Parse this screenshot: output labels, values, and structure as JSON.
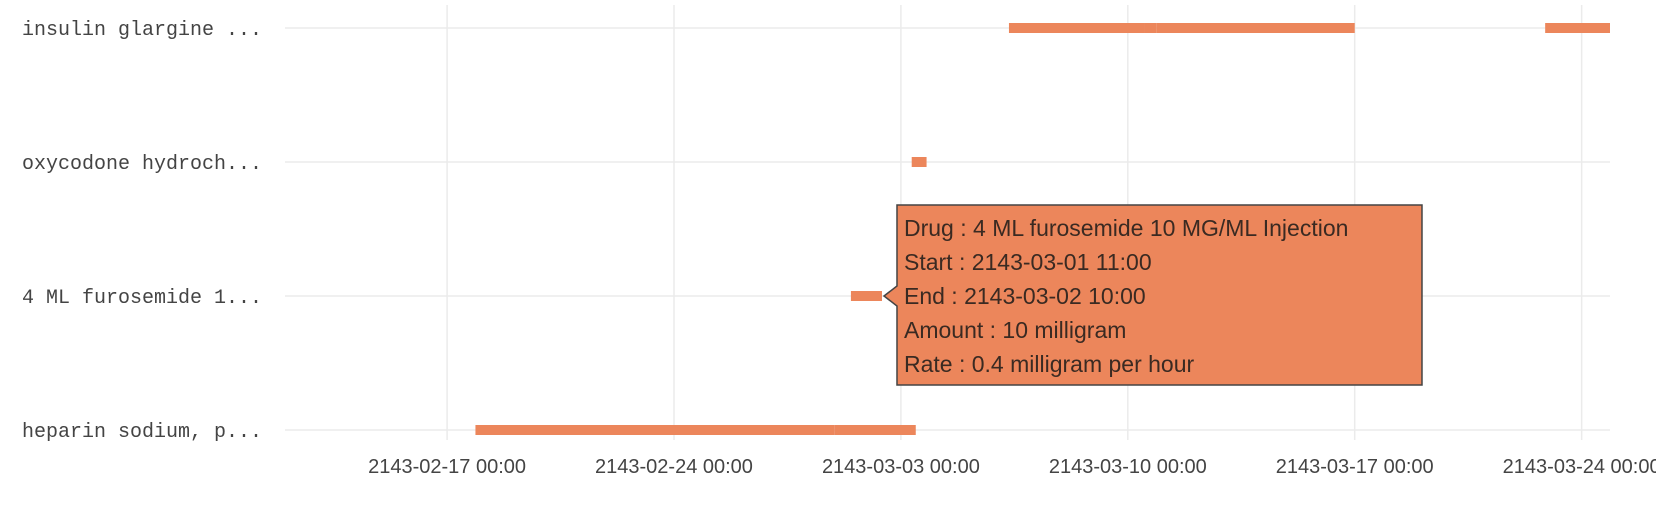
{
  "chart_data": {
    "type": "timeline",
    "title": "",
    "xlabel": "",
    "ylabel": "",
    "x_range": [
      "2143-02-12 00:00",
      "2143-03-24 21:00"
    ],
    "x_ticks": [
      "2143-02-17 00:00",
      "2143-02-24 00:00",
      "2143-03-03 00:00",
      "2143-03-10 00:00",
      "2143-03-17 00:00",
      "2143-03-24 00:00"
    ],
    "categories": [
      "insulin glargine ...",
      "oxycodone hydroch...",
      "4 ML furosemide 1...",
      "heparin sodium, p..."
    ],
    "bar_color": "#ec865b",
    "grid": true,
    "bars": [
      {
        "category": "insulin glargine ...",
        "start": "2143-03-06 08:00",
        "end": "2143-03-10 12:00"
      },
      {
        "category": "insulin glargine ...",
        "start": "2143-03-10 12:00",
        "end": "2143-03-10 21:00"
      },
      {
        "category": "insulin glargine ...",
        "start": "2143-03-10 21:00",
        "end": "2143-03-17 00:00"
      },
      {
        "category": "insulin glargine ...",
        "start": "2143-03-22 21:00",
        "end": "2143-03-24 21:00"
      },
      {
        "category": "oxycodone hydroch...",
        "start": "2143-03-03 08:00",
        "end": "2143-03-03 19:00"
      },
      {
        "category": "4 ML furosemide 1...",
        "start": "2143-03-01 11:00",
        "end": "2143-03-02 10:00"
      },
      {
        "category": "heparin sodium, p...",
        "start": "2143-02-17 21:00",
        "end": "2143-02-28 23:00"
      },
      {
        "category": "heparin sodium, p...",
        "start": "2143-02-28 23:00",
        "end": "2143-03-03 11:00"
      }
    ],
    "tooltip": {
      "category": "4 ML furosemide 1...",
      "lines": [
        "Drug : 4 ML furosemide 10 MG/ML Injection",
        "Start : 2143-03-01 11:00",
        "End : 2143-03-02 10:00",
        "Amount : 10 milligram",
        "Rate : 0.4 milligram per hour"
      ]
    }
  }
}
